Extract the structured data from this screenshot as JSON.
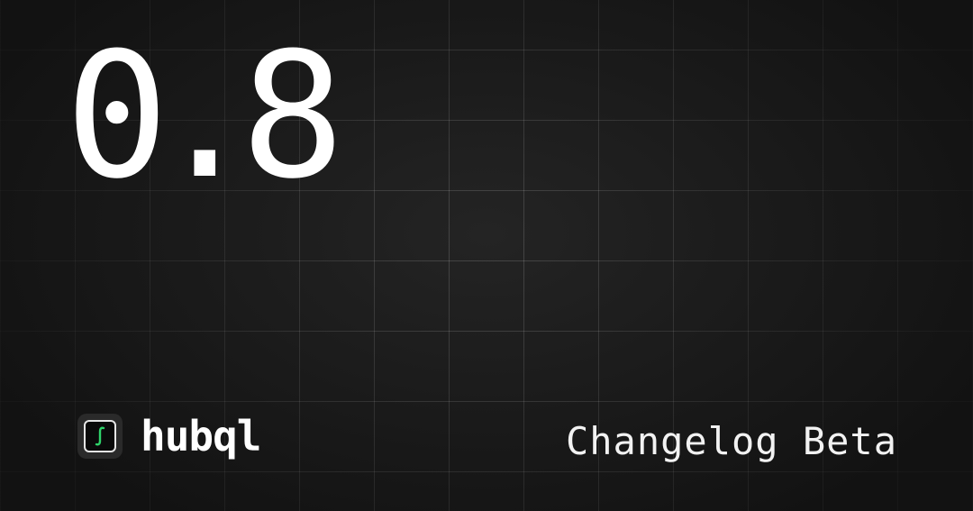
{
  "hero": {
    "version": "0.8"
  },
  "brand": {
    "logo_icon": "integral-icon",
    "name": "hubql",
    "accent": "#2fd36a"
  },
  "tagline": "Changelog Beta",
  "colors": {
    "background": "#1a1a1a",
    "grid": "#ffffff",
    "text": "#ffffff"
  }
}
